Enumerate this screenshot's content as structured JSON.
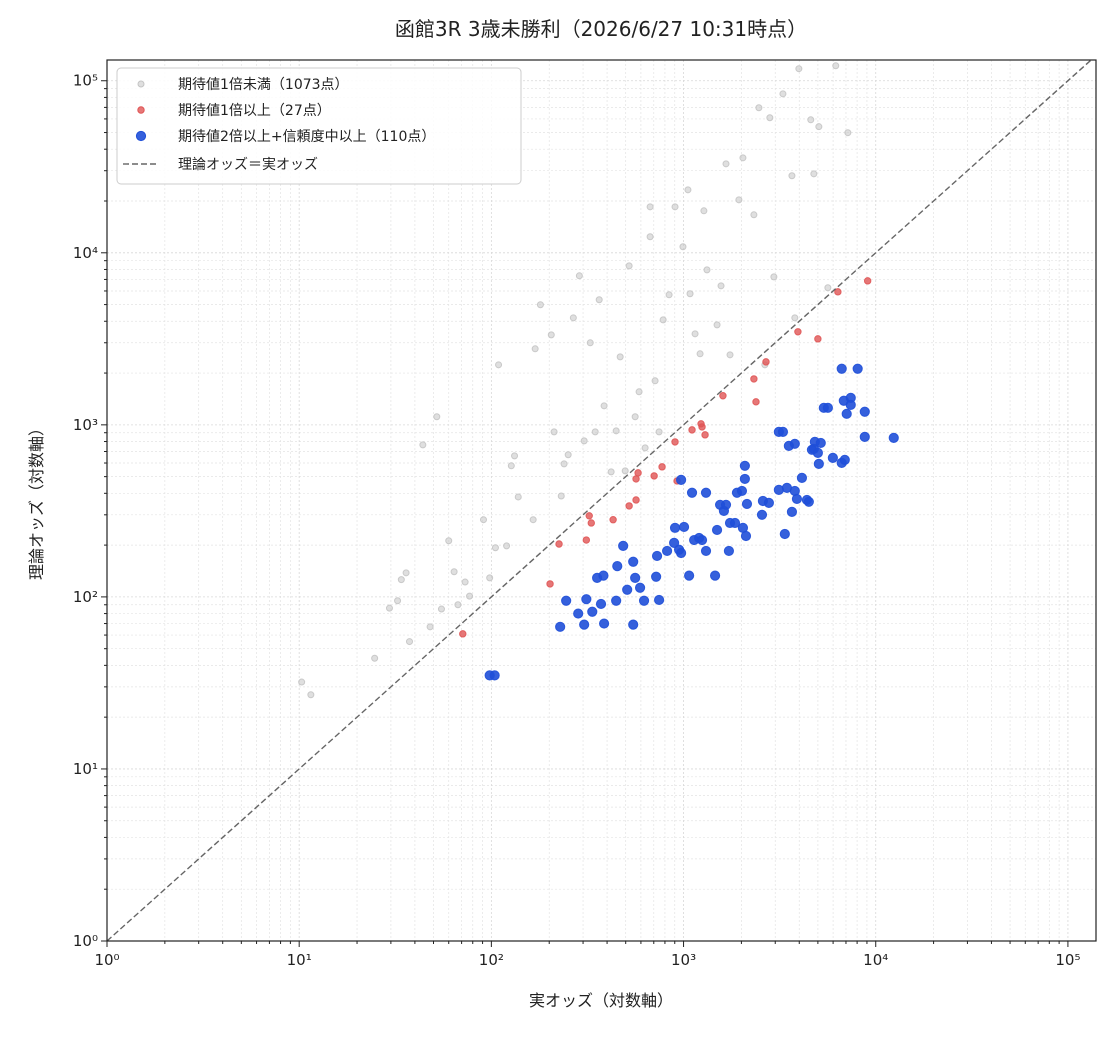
{
  "chart_data": {
    "type": "scatter",
    "title": "函館3R 3歳未勝利（2026/6/27 10:31時点）",
    "xlabel": "実オッズ（対数軸）",
    "ylabel": "理論オッズ（対数軸）",
    "xscale": "log",
    "yscale": "log",
    "grid": true,
    "legend": "upper left",
    "xlim": [
      1,
      140000
    ],
    "ylim": [
      1,
      132000
    ],
    "xticks": [
      {
        "value": 1,
        "label": "10⁰"
      },
      {
        "value": 10,
        "label": "10¹"
      },
      {
        "value": 100,
        "label": "10²"
      },
      {
        "value": 1000,
        "label": "10³"
      },
      {
        "value": 10000,
        "label": "10⁴"
      },
      {
        "value": 100000,
        "label": "10⁵"
      }
    ],
    "yticks": [
      {
        "value": 1,
        "label": "10⁰"
      },
      {
        "value": 10,
        "label": "10¹"
      },
      {
        "value": 100,
        "label": "10²"
      },
      {
        "value": 1000,
        "label": "10³"
      },
      {
        "value": 10000,
        "label": "10⁴"
      },
      {
        "value": 100000,
        "label": "10⁵"
      }
    ],
    "series": [
      {
        "name": "期待値1倍未満（1073点）",
        "color": "#c4c4c4",
        "x": [
          10.3,
          11.5,
          24.7,
          29.5,
          32.5,
          34,
          36,
          37.5,
          44,
          52,
          48,
          55,
          60,
          64,
          67,
          73,
          77,
          91,
          98,
          105,
          109,
          120,
          127,
          132,
          138,
          165,
          169,
          180,
          205,
          212,
          231,
          239,
          251,
          267,
          287,
          304,
          327,
          347,
          364,
          386,
          420,
          446,
          468,
          497,
          521,
          560,
          587,
          631,
          670,
          670,
          711,
          746,
          783,
          841,
          903,
          993,
          1054,
          1081,
          1148,
          1219,
          1276,
          1324,
          1494,
          1567,
          1663,
          1745,
          1941,
          2037,
          2323,
          2466,
          2649,
          2812,
          2951,
          3289,
          3664,
          3793,
          3981,
          4592,
          4764,
          5058,
          5636,
          6194,
          7161
        ],
        "y": [
          32,
          27,
          44,
          86,
          95,
          126,
          138,
          55,
          765,
          1114,
          67,
          85,
          212,
          140,
          90,
          122,
          101,
          281,
          129,
          193,
          2233,
          198,
          578,
          660,
          381,
          281,
          2767,
          4990,
          3335,
          910,
          386,
          593,
          670,
          4188,
          7350,
          807,
          2998,
          910,
          5333,
          1290,
          533,
          923,
          2483,
          540,
          8395,
          1114,
          1556,
          735,
          12390,
          18500,
          1803,
          910,
          4074,
          5700,
          18500,
          10840,
          23230,
          5780,
          3381,
          2588,
          17540,
          7960,
          3811,
          6427,
          32890,
          2553,
          20320,
          35650,
          16630,
          69660,
          2233,
          60950,
          7244,
          83950,
          28050,
          4188,
          117500,
          59290,
          28770,
          54080,
          6266,
          122200,
          49890
        ]
      },
      {
        "name": "期待値1倍以上（27点）",
        "color": "#e05555",
        "x": [
          71,
          202,
          225,
          312,
          323,
          331,
          430,
          521,
          566,
          566,
          580,
          703,
          773,
          903,
          925,
          1107,
          1233,
          1248,
          1294,
          1603,
          2382,
          2323,
          2685,
          3936,
          5000,
          6353,
          9078
        ],
        "y": [
          61,
          119,
          203,
          214,
          296,
          269,
          281,
          338,
          366,
          485,
          526,
          505,
          570,
          796,
          472,
          935,
          1014,
          973,
          875,
          1476,
          1361,
          1849,
          2323,
          3475,
          3162,
          5929,
          6871
        ]
      },
      {
        "name": "期待値2倍以上+信頼度中以上（110点）",
        "color": "#1f4fd8",
        "x": [
          98,
          104,
          228,
          245,
          283,
          304,
          312,
          335,
          355,
          383,
          386,
          372,
          446,
          452,
          485,
          509,
          547,
          547,
          560,
          594,
          623,
          720,
          728,
          746,
          821,
          893,
          903,
          948,
          971,
          1006,
          971,
          1069,
          1107,
          1135,
          1205,
          1248,
          1309,
          1309,
          1459,
          1494,
          1549,
          1622,
          1663,
          1722,
          1745,
          1852,
          1897,
          2013,
          2085,
          2037,
          2085,
          2138,
          2113,
          2588,
          2559,
          2780,
          3133,
          3289,
          3133,
          3365,
          3451,
          3532,
          3793,
          3664,
          3793,
          3890,
          4130,
          4385,
          4487,
          4764,
          4822,
          4656,
          5058,
          5176,
          5000,
          5370,
          5636,
          5984,
          6653,
          6653,
          6823,
          7063,
          7413,
          7413,
          6902,
          8054,
          8770,
          8770,
          12410
        ],
        "y": [
          35,
          35,
          67,
          95,
          80,
          69,
          97,
          82,
          129,
          133,
          70,
          91,
          95,
          151,
          198,
          110,
          160,
          69,
          129,
          113,
          95,
          131,
          173,
          96,
          185,
          206,
          252,
          188,
          479,
          255,
          180,
          133,
          403,
          214,
          220,
          214,
          185,
          403,
          133,
          245,
          343,
          316,
          343,
          185,
          269,
          269,
          403,
          413,
          485,
          252,
          578,
          347,
          226,
          361,
          300,
          352,
          910,
          910,
          419,
          232,
          430,
          755,
          776,
          312,
          413,
          371,
          492,
          366,
          357,
          725,
          796,
          716,
          593,
          785,
          687,
          1256,
          1256,
          643,
          601,
          2118,
          1380,
          1159,
          1435,
          1306,
          626,
          2118,
          1191,
          851,
          840
        ]
      }
    ],
    "reference_line": {
      "name": "理論オッズ＝実オッズ",
      "color": "#666666"
    }
  }
}
